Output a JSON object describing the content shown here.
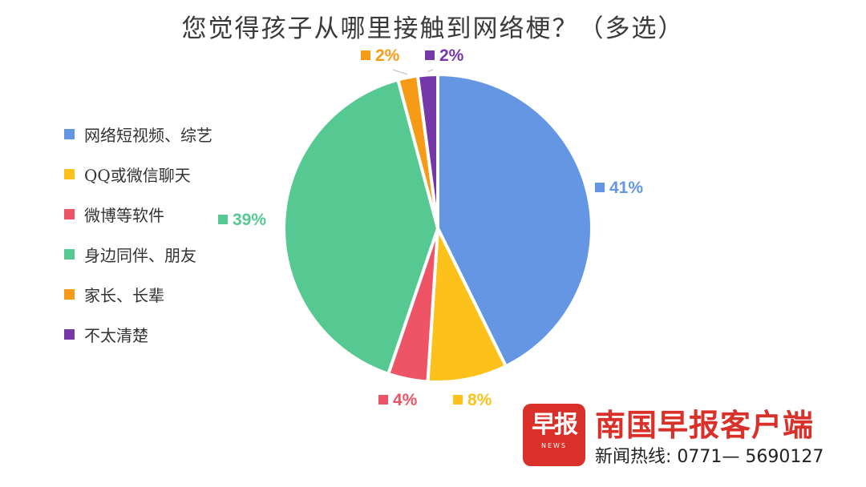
{
  "chart_data": {
    "type": "pie",
    "title": "您觉得孩子从哪里接触到网络梗？（多选）",
    "categories": [
      "网络短视频、综艺",
      "QQ或微信聊天",
      "微博等软件",
      "身边同伴、朋友",
      "家长、长辈",
      "不太清楚"
    ],
    "values": [
      41,
      8,
      4,
      39,
      2,
      2
    ],
    "data_labels": [
      "41%",
      "8%",
      "4%",
      "39%",
      "2%",
      "2%"
    ],
    "colors": [
      "#6496e3",
      "#fcc21b",
      "#ee5466",
      "#56c993",
      "#f79a16",
      "#7438a8"
    ],
    "legend_position": "left"
  },
  "brand": {
    "logo_text": "早报",
    "logo_sub": "NEWS",
    "name": "南国早报客户端",
    "hotline": "新闻热线: 0771— 5690127"
  }
}
